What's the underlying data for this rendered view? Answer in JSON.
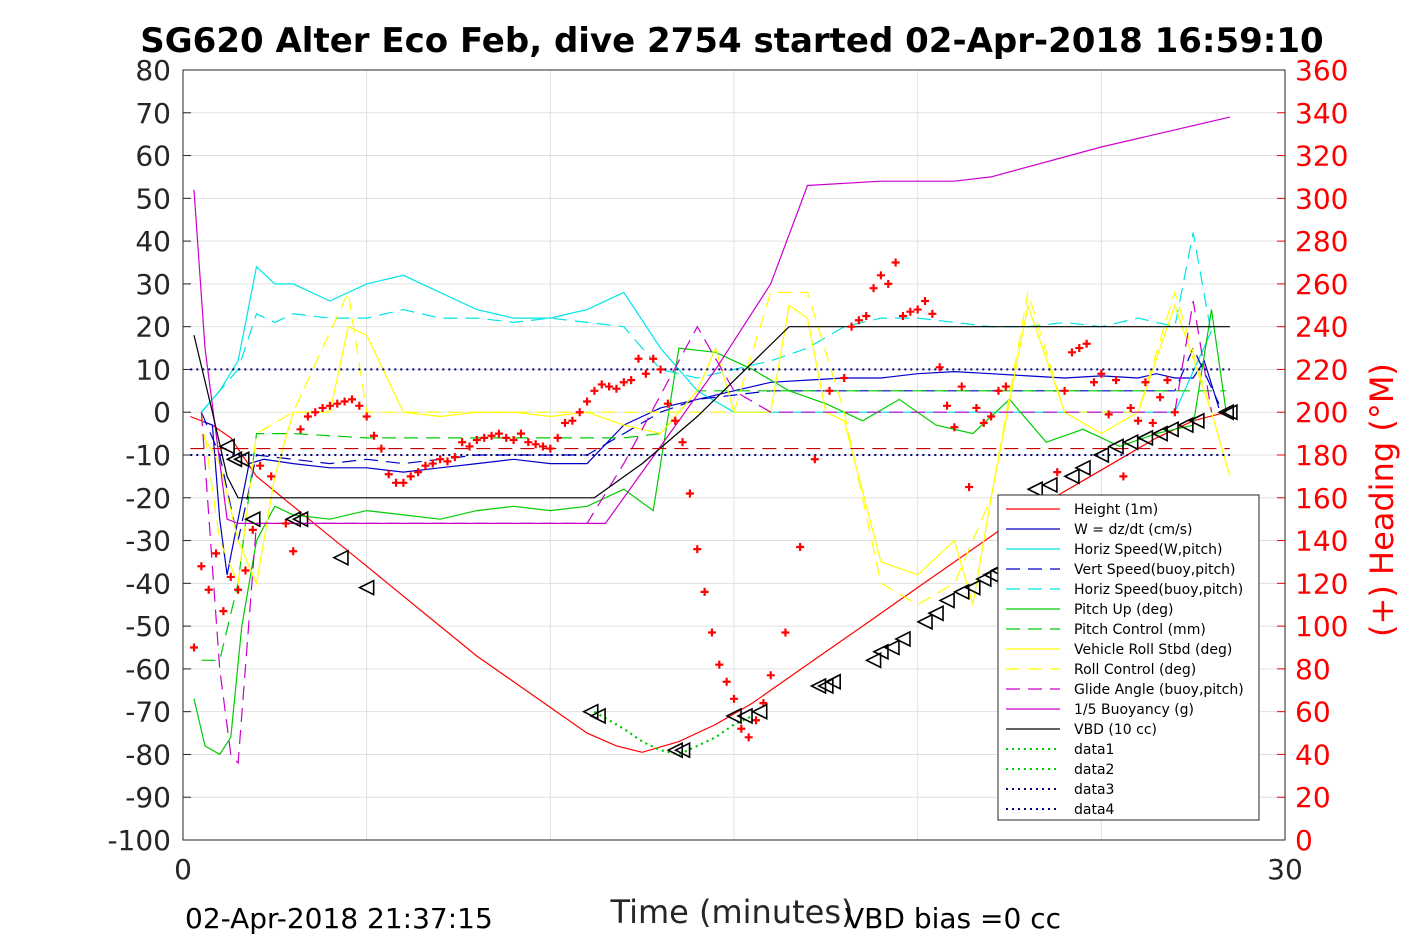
{
  "chart_data": {
    "type": "line",
    "title": "SG620 Alter Eco Feb, dive 2754 started 02-Apr-2018 16:59:10",
    "xlabel": "Time (minutes)",
    "ylabel": "",
    "y2label": "(+) Heading (°M)",
    "xlim": [
      0,
      30
    ],
    "ylim": [
      -100,
      80
    ],
    "y2lim": [
      0,
      360
    ],
    "x_ticks": [
      "0",
      "30"
    ],
    "y_ticks": [
      "80",
      "70",
      "60",
      "50",
      "40",
      "30",
      "20",
      "10",
      "0",
      "-10",
      "-20",
      "-30",
      "-40",
      "-50",
      "-60",
      "-70",
      "-80",
      "-90",
      "-100"
    ],
    "y2_ticks": [
      "360",
      "340",
      "320",
      "300",
      "280",
      "260",
      "240",
      "220",
      "200",
      "180",
      "160",
      "140",
      "120",
      "100",
      "80",
      "60",
      "40",
      "20",
      "0"
    ],
    "grid": true,
    "legend_position": "bottom-right",
    "footer_left": "02-Apr-2018 21:37:15",
    "footer_right": "VBD bias =0 cc",
    "colors": {
      "red": "#ff0000",
      "blue": "#0000cc",
      "cyan": "#00e5e5",
      "green": "#00cc00",
      "yellow": "#ffff00",
      "magenta": "#cc00cc",
      "black": "#000000",
      "navy": "#000080"
    },
    "series": [
      {
        "name": "Height (1m)",
        "color": "#ff0000",
        "dash": "solid",
        "x": [
          0.2,
          0.8,
          1.3,
          2.0,
          3.0,
          4.0,
          5.0,
          6.0,
          7.0,
          8.0,
          9.0,
          10.0,
          11.0,
          11.8,
          12.5,
          13.5,
          14.5,
          15.5,
          16.5,
          17.5,
          18.5,
          19.5,
          20.5,
          21.5,
          22.5,
          23.5,
          24.5,
          25.5,
          26.5,
          27.5,
          28.4
        ],
        "y": [
          -1,
          -3,
          -6,
          -15,
          -22,
          -29,
          -36,
          -43,
          -50,
          -57,
          -63,
          -69,
          -75,
          -78,
          -79.5,
          -77,
          -73,
          -68,
          -62,
          -56,
          -50,
          -44,
          -38,
          -32,
          -26,
          -21,
          -16,
          -11,
          -6,
          -2,
          0
        ]
      },
      {
        "name": "W = dz/dt (cm/s)",
        "color": "#0000cc",
        "dash": "solid",
        "x": [
          0.5,
          0.8,
          1.0,
          1.2,
          1.5,
          1.8,
          2.2,
          3.0,
          4.0,
          5.0,
          6.0,
          7.0,
          8.0,
          9.0,
          10.0,
          11.0,
          12.0,
          13.0,
          14.0,
          15.0,
          16.0,
          17.0,
          18.0,
          19.0,
          20.0,
          21.0,
          22.0,
          23.0,
          24.0,
          25.0,
          26.0,
          26.5,
          27.0,
          27.5,
          27.8,
          28.2
        ],
        "y": [
          -2,
          -3,
          -25,
          -38,
          -25,
          -12,
          -11,
          -12,
          -13,
          -13,
          -14,
          -13,
          -12,
          -11,
          -12,
          -12,
          -3,
          1,
          3,
          5,
          7,
          7.5,
          8,
          8,
          9,
          9.5,
          9,
          8.5,
          8,
          8.5,
          8,
          9,
          8,
          8,
          12,
          1
        ]
      },
      {
        "name": "Horiz Speed(W,pitch)",
        "color": "#00e5e5",
        "dash": "solid",
        "x": [
          0.5,
          1.0,
          1.5,
          2.0,
          2.5,
          3.0,
          4.0,
          5.0,
          6.0,
          7.0,
          8.0,
          9.0,
          10.0,
          11.0,
          12.0,
          13.0,
          14.0,
          15.0,
          16.0,
          17.0,
          18.0,
          19.0,
          20.0,
          21.0,
          22.0,
          23.0,
          24.0,
          25.0,
          26.0,
          27.0,
          28.0
        ],
        "y": [
          0,
          5,
          12,
          34,
          30,
          30,
          26,
          30,
          32,
          28,
          24,
          22,
          22,
          24,
          28,
          15,
          5,
          0,
          0,
          0,
          0,
          0,
          0,
          0,
          0,
          0,
          0,
          0,
          0,
          0,
          19
        ]
      },
      {
        "name": "Vert Speed(buoy,pitch)",
        "color": "#0000cc",
        "dash": "long",
        "x": [
          0.5,
          1.0,
          1.5,
          2.0,
          3.0,
          4.0,
          5.0,
          6.0,
          7.0,
          8.0,
          9.0,
          10.0,
          11.0,
          12.0,
          13.0,
          14.0,
          15.0,
          16.0,
          17.0,
          18.0,
          19.0,
          20.0,
          21.0,
          22.0,
          23.0,
          24.0,
          25.0,
          26.0,
          27.0,
          27.5,
          28.2
        ],
        "y": [
          0,
          -10,
          -30,
          -10,
          -11,
          -12,
          -11,
          -12,
          -11,
          -10,
          -10,
          -10,
          -10,
          -5,
          0,
          3,
          4,
          5,
          5,
          5,
          5,
          5,
          5,
          5,
          5,
          5,
          5,
          5,
          5,
          15,
          2
        ]
      },
      {
        "name": "Horiz Speed(buoy,pitch)",
        "color": "#00e5e5",
        "dash": "long",
        "x": [
          0.5,
          1.0,
          1.5,
          2.0,
          2.5,
          3.0,
          4.0,
          5.0,
          6.0,
          7.0,
          8.0,
          9.0,
          10.0,
          11.0,
          12.0,
          13.0,
          14.0,
          15.0,
          16.0,
          17.0,
          18.0,
          19.0,
          20.0,
          21.0,
          22.0,
          23.0,
          24.0,
          25.0,
          26.0,
          27.0,
          27.5,
          28.0
        ],
        "y": [
          0,
          5,
          10,
          23,
          21,
          23,
          22,
          22,
          24,
          22,
          22,
          21,
          22,
          21,
          20,
          10,
          8,
          10,
          12,
          15,
          20,
          22,
          22,
          21,
          20,
          20,
          21,
          20,
          22,
          20,
          42,
          18
        ]
      },
      {
        "name": "Pitch Up (deg)",
        "color": "#00cc00",
        "dash": "solid",
        "x": [
          0.3,
          0.6,
          1.0,
          1.3,
          1.6,
          2.0,
          2.5,
          3.0,
          4.0,
          5.0,
          6.0,
          7.0,
          8.0,
          9.0,
          10.0,
          11.0,
          12.0,
          12.8,
          13.5,
          14.5,
          15.5,
          16.5,
          17.5,
          18.5,
          19.5,
          20.5,
          21.5,
          22.5,
          23.5,
          24.5,
          25.5,
          26.5,
          27.5,
          28.0,
          28.4
        ],
        "y": [
          -67,
          -78,
          -80,
          -76,
          -50,
          -30,
          -22,
          -24,
          -25,
          -23,
          -24,
          -25,
          -23,
          -22,
          -23,
          -22,
          -18,
          -23,
          15,
          14,
          10,
          5,
          2,
          -2,
          3,
          -3,
          -5,
          3,
          -7,
          -4,
          -8,
          -5,
          -3,
          24,
          0
        ]
      },
      {
        "name": "Pitch Control (mm)",
        "color": "#00cc00",
        "dash": "long",
        "x": [
          0.5,
          1.0,
          1.5,
          2.0,
          3.0,
          5.0,
          8.0,
          11.0,
          12.0,
          13.0,
          14.0,
          28.4
        ],
        "y": [
          -58,
          -58,
          -40,
          -5,
          -5,
          -6,
          -6,
          -6,
          -6,
          -5,
          5,
          5
        ]
      },
      {
        "name": "Vehicle Roll Stbd (deg)",
        "color": "#ffff00",
        "dash": "solid",
        "x": [
          0.5,
          1.0,
          1.5,
          2.0,
          2.5,
          3.0,
          4.0,
          4.5,
          5.0,
          6.0,
          7.0,
          8.0,
          9.0,
          10.0,
          11.0,
          12.0,
          13.0,
          14.0,
          14.5,
          15.0,
          16.0,
          16.5,
          17.0,
          17.5,
          18.0,
          19.0,
          20.0,
          21.0,
          21.5,
          22.0,
          23.0,
          24.0,
          25.0,
          26.0,
          27.0,
          28.0,
          28.5
        ],
        "y": [
          -5,
          -12,
          -30,
          -40,
          -15,
          0,
          0,
          20,
          18,
          0,
          -1,
          0,
          0,
          -1,
          0,
          -3,
          -5,
          5,
          15,
          0,
          0,
          25,
          22,
          0,
          -2,
          -35,
          -38,
          -30,
          -45,
          -20,
          25,
          0,
          -5,
          0,
          25,
          0,
          -15
        ]
      },
      {
        "name": "Roll Control (deg)",
        "color": "#ffff00",
        "dash": "long",
        "x": [
          0.5,
          1.0,
          1.5,
          2.0,
          3.0,
          4.5,
          5.0,
          6.0,
          8.0,
          10.0,
          12.0,
          14.0,
          15.0,
          16.0,
          17.0,
          18.0,
          19.0,
          20.0,
          21.0,
          22.0,
          23.0,
          24.0,
          25.0,
          26.0,
          27.0,
          28.0
        ],
        "y": [
          0,
          -30,
          -40,
          -5,
          0,
          28,
          0,
          0,
          0,
          0,
          0,
          0,
          0,
          28,
          28,
          0,
          -40,
          -45,
          -40,
          -20,
          28,
          0,
          0,
          0,
          28,
          0
        ]
      },
      {
        "name": "Glide Angle (buoy,pitch)",
        "color": "#cc00cc",
        "dash": "long",
        "x": [
          0.5,
          1.0,
          1.3,
          1.5,
          2.0,
          3.0,
          5.0,
          7.0,
          9.0,
          11.0,
          12.0,
          13.0,
          14.0,
          15.0,
          16.0,
          18.0,
          20.0,
          22.0,
          24.0,
          26.0,
          27.0,
          27.5,
          28.0
        ],
        "y": [
          0,
          -60,
          -80,
          -82,
          -26,
          -26,
          -26,
          -26,
          -26,
          -26,
          -12,
          4,
          20,
          5,
          0,
          0,
          0,
          0,
          0,
          0,
          0,
          26,
          0
        ]
      },
      {
        "name": "1/5 Buoyancy (g)",
        "color": "#cc00cc",
        "dash": "solid",
        "x": [
          0.3,
          0.6,
          1.2,
          1.5,
          2.0,
          4.0,
          6.0,
          8.0,
          10.0,
          11.5,
          13.0,
          14.5,
          16.0,
          17.0,
          19.0,
          21.0,
          22.0,
          25.0,
          28.5
        ],
        "y": [
          52,
          15,
          -25,
          -26,
          -26,
          -26,
          -26,
          -26,
          -26,
          -26,
          -8,
          10,
          30,
          53,
          54,
          54,
          55,
          62,
          69
        ]
      },
      {
        "name": "VBD (10 cc)",
        "color": "#000000",
        "dash": "solid",
        "x": [
          0.3,
          0.8,
          1.2,
          1.5,
          3.0,
          6.0,
          9.0,
          11.2,
          12.5,
          14.0,
          16.5,
          20.0,
          25.0,
          28.5
        ],
        "y": [
          18,
          0,
          -15,
          -20,
          -20,
          -20,
          -20,
          -20,
          -12,
          -1,
          20,
          20,
          20,
          20
        ]
      },
      {
        "name": "data1",
        "color": "#00cc00",
        "dash": "dot",
        "x": [
          11.2,
          12.0,
          12.5,
          13.0,
          13.5,
          14.0,
          14.5,
          15.0,
          15.5
        ],
        "y": [
          -70,
          -74,
          -77,
          -79,
          -80,
          -78,
          -76,
          -73,
          -71
        ]
      },
      {
        "name": "data2",
        "color": "#00cc00",
        "dash": "dot",
        "x": [
          11.2,
          12.0,
          12.5,
          13.0,
          13.5,
          14.0,
          14.5,
          15.0,
          15.5
        ],
        "y": [
          -70,
          -74,
          -77,
          -79,
          -80,
          -78,
          -76,
          -73,
          -71
        ]
      },
      {
        "name": "data3",
        "color": "#000080",
        "dash": "dot",
        "x": [
          0.2,
          28.5
        ],
        "y": [
          10,
          10
        ]
      },
      {
        "name": "data4",
        "color": "#000080",
        "dash": "dot",
        "x": [
          0.2,
          28.5
        ],
        "y": [
          -10,
          -10
        ]
      }
    ],
    "redline": {
      "color": "#cc0000",
      "y": -8.5,
      "x": [
        0.2,
        28.5
      ]
    },
    "heading_points": {
      "color": "#ff0000",
      "axis": "right",
      "x": [
        0.3,
        0.5,
        0.7,
        0.9,
        1.1,
        1.3,
        1.5,
        1.7,
        1.9,
        2.1,
        2.4,
        2.8,
        3.0,
        3.2,
        3.4,
        3.6,
        3.8,
        4.0,
        4.2,
        4.4,
        4.6,
        4.8,
        5.0,
        5.2,
        5.4,
        5.6,
        5.8,
        6.0,
        6.2,
        6.4,
        6.6,
        6.8,
        7.0,
        7.2,
        7.4,
        7.6,
        7.8,
        8.0,
        8.2,
        8.4,
        8.6,
        8.8,
        9.0,
        9.2,
        9.4,
        9.6,
        9.8,
        10.0,
        10.2,
        10.4,
        10.6,
        10.8,
        11.0,
        11.2,
        11.4,
        11.6,
        11.8,
        12.0,
        12.2,
        12.4,
        12.6,
        12.8,
        13.0,
        13.2,
        13.4,
        13.6,
        13.8,
        14.0,
        14.2,
        14.4,
        14.6,
        14.8,
        15.0,
        15.2,
        15.4,
        15.6,
        15.8,
        16.0,
        16.4,
        16.8,
        17.2,
        17.6,
        18.0,
        18.2,
        18.4,
        18.6,
        18.8,
        19.0,
        19.2,
        19.4,
        19.6,
        19.8,
        20.0,
        20.2,
        20.4,
        20.6,
        20.8,
        21.0,
        21.2,
        21.4,
        21.6,
        21.8,
        22.0,
        22.2,
        22.4,
        22.6,
        22.8,
        23.0,
        23.2,
        23.4,
        23.6,
        23.8,
        24.0,
        24.2,
        24.4,
        24.6,
        24.8,
        25.0,
        25.2,
        25.4,
        25.6,
        25.8,
        26.0,
        26.2,
        26.4,
        26.6,
        26.8,
        27.0
      ],
      "y": [
        90,
        128,
        117,
        134,
        107,
        123,
        117,
        126,
        145,
        175,
        170,
        148,
        135,
        192,
        198,
        200,
        202,
        203,
        204,
        205,
        206,
        203,
        198,
        189,
        183,
        171,
        167,
        167,
        170,
        172,
        175,
        176,
        178,
        177,
        179,
        186,
        184,
        187,
        188,
        189,
        190,
        188,
        187,
        190,
        186,
        185,
        184,
        183,
        188,
        195,
        196,
        200,
        205,
        210,
        213,
        212,
        211,
        214,
        215,
        225,
        218,
        225,
        220,
        204,
        196,
        186,
        162,
        136,
        116,
        97,
        82,
        74,
        66,
        52,
        48,
        56,
        64,
        77,
        97,
        137,
        178,
        210,
        216,
        240,
        243,
        245,
        258,
        264,
        260,
        270,
        245,
        247,
        248,
        252,
        246,
        221,
        203,
        193,
        212,
        165,
        202,
        195,
        198,
        210,
        212,
        150,
        152,
        147,
        148,
        150,
        146,
        172,
        210,
        228,
        230,
        232,
        214,
        218,
        199,
        215,
        170,
        202,
        196,
        214,
        195,
        207,
        215,
        200
      ]
    },
    "triangles": {
      "x": [
        1.2,
        1.4,
        1.6,
        1.9,
        3.0,
        3.2,
        4.3,
        5.0,
        11.1,
        11.3,
        13.4,
        13.6,
        15.0,
        15.3,
        15.7,
        17.3,
        17.5,
        17.7,
        18.8,
        19.0,
        19.3,
        19.6,
        20.2,
        20.5,
        20.8,
        21.2,
        21.5,
        21.8,
        22.0,
        22.2,
        22.5,
        23.2,
        23.6,
        24.2,
        24.5,
        25.0,
        25.4,
        25.8,
        26.2,
        26.6,
        26.9,
        27.3,
        27.6,
        28.4,
        28.5
      ],
      "y": [
        -8,
        -11,
        -11,
        -25,
        -25,
        -25,
        -34,
        -41,
        -70,
        -71,
        -79,
        -79,
        -71,
        -71,
        -70,
        -64,
        -64,
        -63,
        -58,
        -56,
        -55,
        -53,
        -49,
        -47,
        -44,
        -42,
        -41,
        -39,
        -38,
        -37,
        -34,
        -18,
        -17,
        -15,
        -13,
        -10,
        -8,
        -7,
        -6,
        -5,
        -4,
        -3,
        -2,
        0,
        0
      ]
    }
  }
}
